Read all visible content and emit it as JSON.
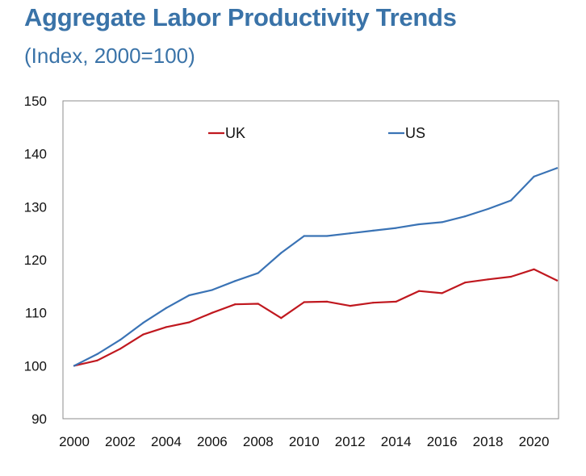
{
  "header": {
    "title": "Aggregate Labor Productivity Trends",
    "subtitle": "(Index, 2000=100)"
  },
  "chart_data": {
    "type": "line",
    "title": "Aggregate Labor Productivity Trends",
    "subtitle": "(Index, 2000=100)",
    "xlabel": "",
    "ylabel": "",
    "x": [
      2000,
      2001,
      2002,
      2003,
      2004,
      2005,
      2006,
      2007,
      2008,
      2009,
      2010,
      2011,
      2012,
      2013,
      2014,
      2015,
      2016,
      2017,
      2018,
      2019,
      2020,
      2021
    ],
    "xticks": [
      "2000",
      "2002",
      "2004",
      "2006",
      "2008",
      "2010",
      "2012",
      "2014",
      "2016",
      "2018",
      "2020"
    ],
    "yticks": [
      "90",
      "100",
      "110",
      "120",
      "130",
      "140",
      "150"
    ],
    "ylim": [
      90,
      150
    ],
    "xlim": [
      2000,
      2021
    ],
    "legend_position": "top",
    "grid": false,
    "series": [
      {
        "name": "UK",
        "color": "#c0181f",
        "values": [
          100,
          101,
          103.2,
          105.9,
          107.3,
          108.2,
          110,
          111.6,
          111.7,
          109,
          112,
          112.1,
          111.3,
          111.9,
          112.1,
          114.1,
          113.7,
          115.7,
          116.3,
          116.8,
          118.2,
          116.1
        ]
      },
      {
        "name": "US",
        "color": "#3a73b5",
        "values": [
          100,
          102.2,
          104.9,
          108.1,
          110.9,
          113.3,
          114.3,
          116,
          117.5,
          121.3,
          124.5,
          124.5,
          125,
          125.5,
          126,
          126.7,
          127.1,
          128.2,
          129.6,
          131.2,
          135.7,
          137.3
        ]
      }
    ]
  }
}
